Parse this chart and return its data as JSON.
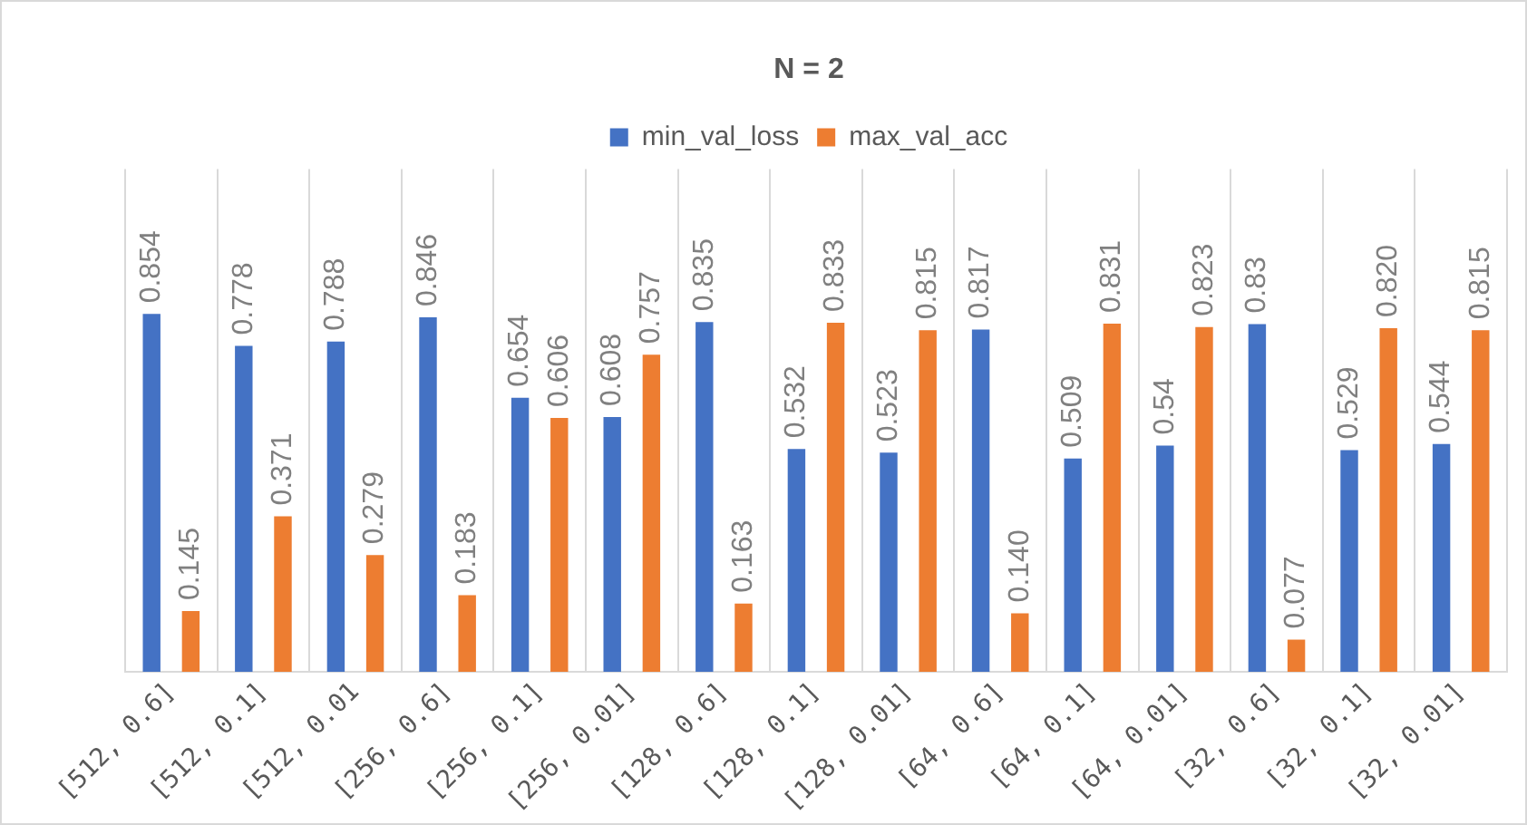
{
  "chart_data": {
    "type": "bar",
    "title": "N = 2",
    "categories": [
      "[512, 0.6]",
      "[512, 0.1]",
      "[512, 0.01",
      "[256, 0.6]",
      "[256, 0.1]",
      "[256, 0.01]",
      "[128, 0.6]",
      "[128, 0.1]",
      "[128, 0.01]",
      "[64, 0.6]",
      "[64, 0.1]",
      "[64, 0.01]",
      "[32, 0.6]",
      "[32, 0.1]",
      "[32, 0.01]"
    ],
    "series": [
      {
        "name": "min_val_loss",
        "color": "#4472c4",
        "values": [
          0.854,
          0.778,
          0.788,
          0.846,
          0.654,
          0.608,
          0.835,
          0.532,
          0.523,
          0.817,
          0.509,
          0.54,
          0.83,
          0.529,
          0.544
        ],
        "value_labels": [
          "0.854",
          "0.778",
          "0.788",
          "0.846",
          "0.654",
          "0.608",
          "0.835",
          "0.532",
          "0.523",
          "0.817",
          "0.509",
          "0.54",
          "0.83",
          "0.529",
          "0.544"
        ]
      },
      {
        "name": "max_val_acc",
        "color": "#ed7d31",
        "values": [
          0.145,
          0.371,
          0.279,
          0.183,
          0.606,
          0.757,
          0.163,
          0.833,
          0.815,
          0.14,
          0.831,
          0.823,
          0.077,
          0.82,
          0.815
        ],
        "value_labels": [
          "0.145",
          "0.371",
          "0.279",
          "0.183",
          "0.606",
          "0.757",
          "0.163",
          "0.833",
          "0.815",
          "0.140",
          "0.831",
          "0.823",
          "0.077",
          "0.820",
          "0.815"
        ]
      }
    ],
    "grid": "x",
    "legend": "top"
  }
}
